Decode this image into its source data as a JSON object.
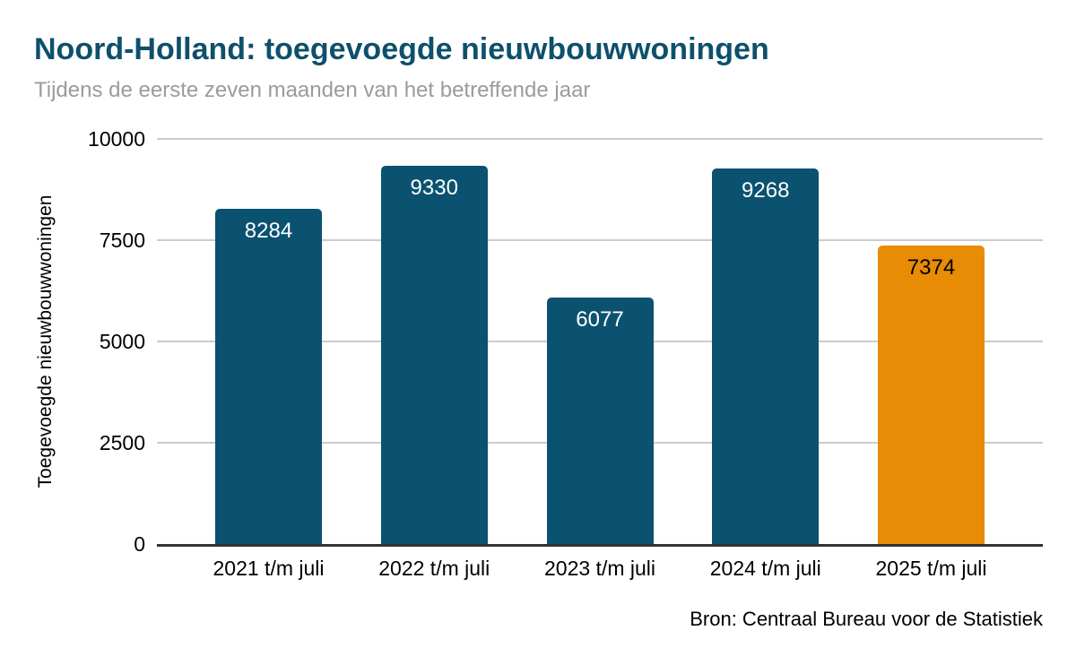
{
  "header": {
    "title": "Noord-Holland: toegevoegde nieuwbouwwoningen",
    "subtitle": "Tijdens de eerste zeven maanden van het betreffende jaar"
  },
  "colors": {
    "title": "#0e506c",
    "subtitle": "#9b9b9b",
    "bar_teal": "#0b5270",
    "bar_orange": "#e78c04",
    "gridline": "#cccccc",
    "axis_line": "#333333",
    "label_on_teal": "#ffffff",
    "label_on_orange": "#000000"
  },
  "chart_data": {
    "type": "bar",
    "title": "Noord-Holland: toegevoegde nieuwbouwwoningen",
    "subtitle": "Tijdens de eerste zeven maanden van het betreffende jaar",
    "categories": [
      "2021 t/m juli",
      "2022 t/m juli",
      "2023 t/m juli",
      "2024 t/m juli",
      "2025 t/m juli"
    ],
    "values": [
      8284,
      9330,
      6077,
      9268,
      7374
    ],
    "value_labels": [
      "8284",
      "9330",
      "6077",
      "9268",
      "7374"
    ],
    "bar_colors": [
      "#0b5270",
      "#0b5270",
      "#0b5270",
      "#0b5270",
      "#e78c04"
    ],
    "value_label_colors": [
      "#ffffff",
      "#ffffff",
      "#ffffff",
      "#ffffff",
      "#000000"
    ],
    "xlabel": "",
    "ylabel": "Toegevoegde nieuwbouwwoningen",
    "ylim": [
      0,
      10000
    ],
    "yticks": [
      0,
      2500,
      5000,
      7500,
      10000
    ],
    "ytick_labels": [
      "0",
      "2500",
      "5000",
      "7500",
      "10000"
    ],
    "grid": true,
    "legend": false,
    "source": "Bron: Centraal Bureau voor de Statistiek"
  }
}
